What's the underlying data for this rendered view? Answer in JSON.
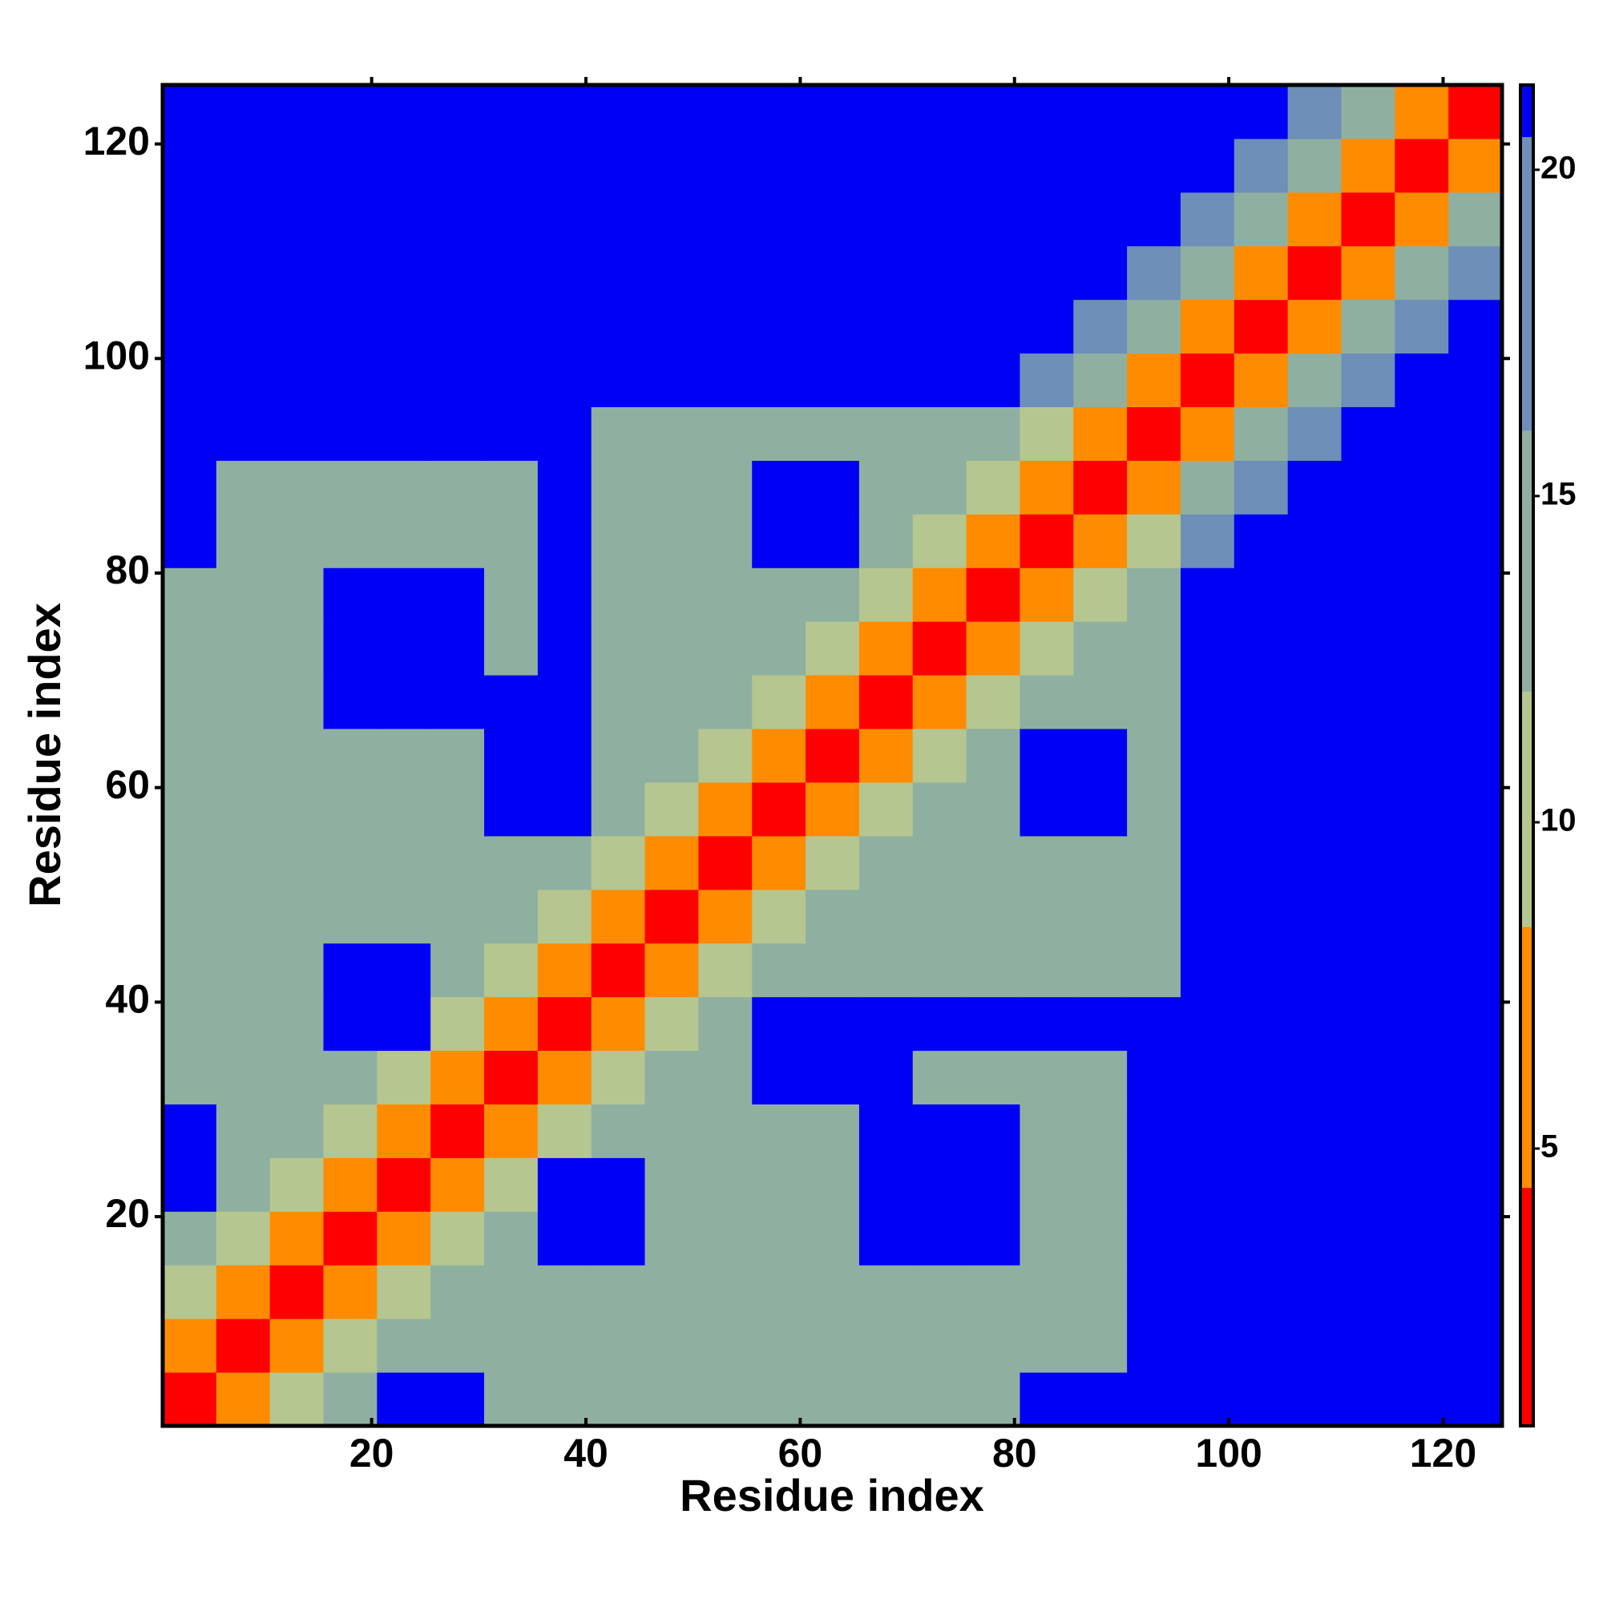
{
  "chart_data": {
    "type": "heatmap",
    "x_label": "Residue index",
    "y_label": "Residue index",
    "x": [
      3,
      8,
      13,
      18,
      23,
      28,
      33,
      38,
      43,
      48,
      53,
      58,
      63,
      68,
      73,
      78,
      83,
      88,
      93,
      98,
      103,
      108,
      113,
      118,
      123
    ],
    "y": [
      3,
      8,
      13,
      18,
      23,
      28,
      33,
      38,
      43,
      48,
      53,
      58,
      63,
      68,
      73,
      78,
      83,
      88,
      93,
      98,
      103,
      108,
      113,
      118,
      123
    ],
    "xlim": [
      0.5,
      125.5
    ],
    "ylim": [
      0.5,
      125.5
    ],
    "xticks": [
      20,
      40,
      60,
      80,
      100,
      120
    ],
    "yticks": [
      20,
      40,
      60,
      80,
      100,
      120
    ],
    "zlim": [
      0.75,
      21.3
    ],
    "zticks": [
      5,
      10,
      15,
      20
    ],
    "colorscale": [
      [
        0.75,
        "#ff0000"
      ],
      [
        4.4,
        "#ff8c00"
      ],
      [
        8.4,
        "#b5c690"
      ],
      [
        12,
        "#8fb0a0"
      ],
      [
        16,
        "#6d8fb8"
      ],
      [
        20.5,
        "#0000f5"
      ]
    ],
    "z": [
      [
        3,
        7,
        11,
        14,
        21,
        21,
        12,
        12,
        12,
        12,
        12,
        12,
        12,
        12,
        12,
        12,
        21,
        21,
        21,
        21,
        21,
        21,
        21,
        21,
        21
      ],
      [
        7,
        3,
        7,
        11,
        14,
        12,
        12,
        12,
        12,
        12,
        12,
        12,
        12,
        12,
        12,
        12,
        12,
        12,
        21,
        21,
        21,
        21,
        21,
        21,
        21
      ],
      [
        11,
        7,
        3,
        7,
        11,
        14,
        12,
        12,
        12,
        12,
        12,
        12,
        12,
        12,
        12,
        12,
        12,
        12,
        21,
        21,
        21,
        21,
        21,
        21,
        21
      ],
      [
        14,
        11,
        7,
        3,
        7,
        11,
        14,
        21,
        21,
        12,
        12,
        12,
        12,
        21,
        21,
        21,
        12,
        12,
        21,
        21,
        21,
        21,
        21,
        21,
        21
      ],
      [
        21,
        14,
        11,
        7,
        3,
        7,
        11,
        21,
        21,
        12,
        12,
        12,
        12,
        21,
        21,
        21,
        12,
        12,
        21,
        21,
        21,
        21,
        21,
        21,
        21
      ],
      [
        21,
        12,
        14,
        11,
        7,
        3,
        7,
        11,
        12,
        12,
        12,
        12,
        12,
        21,
        21,
        21,
        12,
        12,
        21,
        21,
        21,
        21,
        21,
        21,
        21
      ],
      [
        12,
        12,
        12,
        14,
        11,
        7,
        3,
        7,
        11,
        12,
        12,
        21,
        21,
        21,
        12,
        12,
        12,
        12,
        21,
        21,
        21,
        21,
        21,
        21,
        21
      ],
      [
        12,
        12,
        12,
        21,
        21,
        11,
        7,
        3,
        7,
        11,
        12,
        21,
        21,
        21,
        21,
        21,
        21,
        21,
        21,
        21,
        21,
        21,
        21,
        21,
        21
      ],
      [
        12,
        12,
        12,
        21,
        21,
        12,
        11,
        7,
        3,
        7,
        11,
        12,
        12,
        12,
        12,
        12,
        12,
        12,
        12,
        21,
        21,
        21,
        21,
        21,
        21
      ],
      [
        12,
        12,
        12,
        12,
        12,
        12,
        12,
        11,
        7,
        3,
        7,
        11,
        12,
        12,
        12,
        12,
        12,
        12,
        12,
        21,
        21,
        21,
        21,
        21,
        21
      ],
      [
        12,
        12,
        12,
        12,
        12,
        12,
        12,
        12,
        11,
        7,
        3,
        7,
        11,
        12,
        12,
        12,
        12,
        12,
        12,
        21,
        21,
        21,
        21,
        21,
        21
      ],
      [
        12,
        12,
        12,
        12,
        12,
        12,
        21,
        21,
        12,
        11,
        7,
        3,
        7,
        11,
        12,
        12,
        21,
        21,
        12,
        21,
        21,
        21,
        21,
        21,
        21
      ],
      [
        12,
        12,
        12,
        12,
        12,
        12,
        21,
        21,
        12,
        12,
        11,
        7,
        3,
        7,
        11,
        12,
        21,
        21,
        12,
        21,
        21,
        21,
        21,
        21,
        21
      ],
      [
        12,
        12,
        12,
        21,
        21,
        21,
        21,
        21,
        12,
        12,
        12,
        11,
        7,
        3,
        7,
        11,
        12,
        12,
        12,
        21,
        21,
        21,
        21,
        21,
        21
      ],
      [
        12,
        12,
        12,
        21,
        21,
        21,
        12,
        21,
        12,
        12,
        12,
        12,
        11,
        7,
        3,
        7,
        11,
        12,
        12,
        21,
        21,
        21,
        21,
        21,
        21
      ],
      [
        12,
        12,
        12,
        21,
        21,
        21,
        12,
        21,
        12,
        12,
        12,
        12,
        12,
        11,
        7,
        3,
        7,
        11,
        12,
        21,
        21,
        21,
        21,
        21,
        21
      ],
      [
        21,
        12,
        12,
        12,
        12,
        12,
        12,
        21,
        12,
        12,
        12,
        21,
        21,
        12,
        11,
        7,
        3,
        7,
        11,
        18,
        21,
        21,
        21,
        21,
        21
      ],
      [
        21,
        12,
        12,
        12,
        12,
        12,
        12,
        21,
        12,
        12,
        12,
        21,
        21,
        12,
        12,
        11,
        7,
        3,
        7,
        15,
        18,
        21,
        21,
        21,
        21
      ],
      [
        21,
        21,
        21,
        21,
        21,
        21,
        21,
        21,
        12,
        12,
        12,
        12,
        12,
        12,
        12,
        12,
        11,
        7,
        3,
        7,
        15,
        18,
        21,
        21,
        21
      ],
      [
        21,
        21,
        21,
        21,
        21,
        21,
        21,
        21,
        21,
        21,
        21,
        21,
        21,
        21,
        21,
        21,
        18,
        15,
        7,
        3,
        7,
        15,
        18,
        21,
        21
      ],
      [
        21,
        21,
        21,
        21,
        21,
        21,
        21,
        21,
        21,
        21,
        21,
        21,
        21,
        21,
        21,
        21,
        21,
        18,
        15,
        7,
        3,
        7,
        15,
        18,
        21
      ],
      [
        21,
        21,
        21,
        21,
        21,
        21,
        21,
        21,
        21,
        21,
        21,
        21,
        21,
        21,
        21,
        21,
        21,
        21,
        18,
        15,
        7,
        3,
        7,
        15,
        18
      ],
      [
        21,
        21,
        21,
        21,
        21,
        21,
        21,
        21,
        21,
        21,
        21,
        21,
        21,
        21,
        21,
        21,
        21,
        21,
        21,
        18,
        15,
        7,
        3,
        7,
        15
      ],
      [
        21,
        21,
        21,
        21,
        21,
        21,
        21,
        21,
        21,
        21,
        21,
        21,
        21,
        21,
        21,
        21,
        21,
        21,
        21,
        21,
        18,
        15,
        7,
        3,
        7
      ],
      [
        21,
        21,
        21,
        21,
        21,
        21,
        21,
        21,
        21,
        21,
        21,
        21,
        21,
        21,
        21,
        21,
        21,
        21,
        21,
        21,
        21,
        18,
        15,
        7,
        3
      ]
    ]
  }
}
